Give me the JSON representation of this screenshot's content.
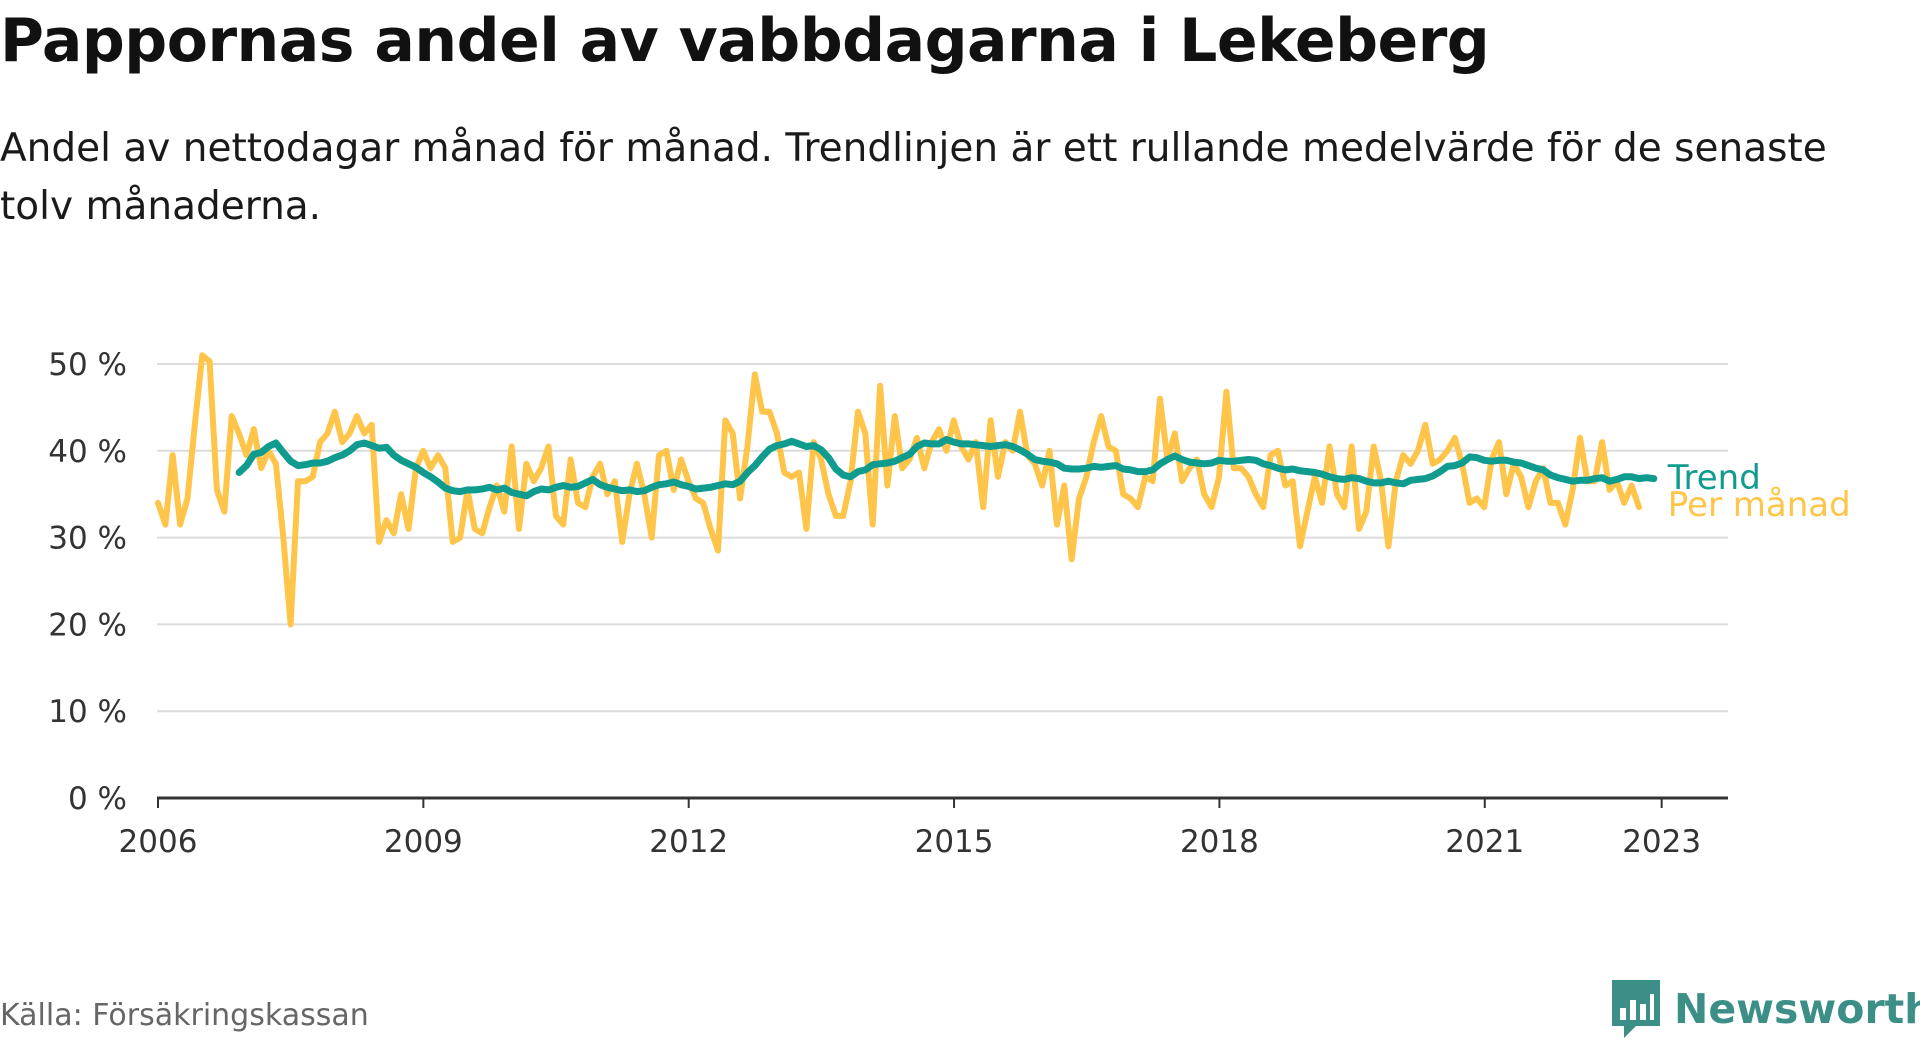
{
  "title": "Pappornas andel av vabbdagarna i Lekeberg",
  "subtitle": "Andel av nettodagar månad för månad. Trendlinjen är ett rullande medelvärde för de senaste tolv månaderna.",
  "source": "Källa: Försäkringskassan",
  "brand": "Newsworthy",
  "colors": {
    "monthly": "#ffc54a",
    "trend": "#0f9b8e",
    "brand": "#3b8f86",
    "grid": "#dcdcdc",
    "axis": "#333333"
  },
  "chart_data": {
    "type": "line",
    "ylim": [
      0,
      50
    ],
    "y_ticks": [
      0,
      10,
      20,
      30,
      40,
      50
    ],
    "y_tick_labels": [
      "0 %",
      "10 %",
      "20 %",
      "30 %",
      "40 %",
      "50 %"
    ],
    "xlim": [
      2006,
      2023.75
    ],
    "x_ticks": [
      2006,
      2009,
      2012,
      2015,
      2018,
      2021,
      2023
    ],
    "x_tick_labels": [
      "2006",
      "2009",
      "2012",
      "2015",
      "2018",
      "2021",
      "2023"
    ],
    "grid": "horizontal",
    "series": [
      {
        "name": "Per månad",
        "start": 2006.0,
        "step": 0.0833,
        "values": [
          34,
          31.5,
          39.5,
          31.5,
          34.5,
          43,
          51,
          50.3,
          35.5,
          33,
          44,
          42,
          39.5,
          42.5,
          38,
          40,
          38.5,
          30,
          20,
          36.5,
          36.5,
          37,
          41,
          42,
          44.5,
          41,
          42,
          44,
          42,
          43,
          29.5,
          32,
          30.5,
          35,
          31,
          38,
          40,
          38,
          39.5,
          38,
          29.5,
          30,
          35.5,
          31,
          30.5,
          33.5,
          36,
          33,
          40.5,
          31,
          38.5,
          36.5,
          38,
          40.5,
          32.5,
          31.5,
          39,
          34,
          33.5,
          37,
          38.5,
          35,
          36.5,
          29.5,
          35,
          38.5,
          35,
          30,
          39.5,
          40,
          35.5,
          39,
          36.5,
          34.5,
          34,
          31,
          28.5,
          43.5,
          42,
          34.5,
          40.5,
          48.8,
          44.5,
          44.5,
          42,
          37.5,
          37,
          37.5,
          31,
          41,
          39,
          35,
          32.5,
          32.5,
          36.5,
          44.5,
          42,
          31.5,
          47.5,
          36,
          44,
          38,
          39,
          41.5,
          38,
          41,
          42.5,
          40,
          43.5,
          40.5,
          39,
          41,
          33.5,
          43.5,
          37,
          41,
          40,
          44.5,
          39.5,
          38.5,
          36,
          40,
          31.5,
          36,
          27.5,
          34.5,
          37,
          41,
          44,
          40.5,
          40,
          35,
          34.5,
          33.5,
          37,
          36.5,
          46,
          39,
          42,
          36.5,
          38,
          39,
          35,
          33.5,
          37,
          46.8,
          38,
          38,
          37,
          35,
          33.5,
          39.5,
          40,
          36,
          36.5,
          29,
          33,
          37,
          34,
          40.5,
          35,
          33.5,
          40.5,
          31,
          33,
          40.5,
          36.5,
          29,
          36.5,
          39.5,
          38.5,
          40,
          43,
          38.5,
          39,
          40,
          41.5,
          38.5,
          34,
          34.5,
          33.5,
          39,
          41,
          35,
          38.5,
          37,
          33.5,
          36.5,
          38,
          34,
          34,
          31.5,
          35.5,
          41.5,
          36.5,
          36.5,
          41,
          35.5,
          36.5,
          34,
          36,
          33.5
        ]
      },
      {
        "name": "Trend",
        "start": 2006.917,
        "step": 0.0833,
        "values": [
          37.5,
          38.3,
          39.6,
          39.8,
          40.5,
          40.9,
          39.8,
          38.8,
          38.3,
          38.4,
          38.6,
          38.6,
          38.8,
          39.2,
          39.5,
          40,
          40.7,
          40.9,
          40.6,
          40.3,
          40.4,
          39.5,
          38.9,
          38.5,
          38.1,
          37.5,
          37,
          36.4,
          35.7,
          35.4,
          35.3,
          35.5,
          35.5,
          35.6,
          35.8,
          35.5,
          35.7,
          35.2,
          35,
          34.8,
          35.3,
          35.6,
          35.5,
          35.8,
          36,
          35.8,
          35.9,
          36.3,
          36.7,
          36.1,
          35.8,
          35.6,
          35.4,
          35.5,
          35.3,
          35.4,
          35.8,
          36.1,
          36.2,
          36.4,
          36.1,
          35.9,
          35.6,
          35.7,
          35.8,
          36,
          36.2,
          36.1,
          36.5,
          37.5,
          38.3,
          39.3,
          40.2,
          40.6,
          40.8,
          41.1,
          40.8,
          40.5,
          40.6,
          40.1,
          39.2,
          37.9,
          37.2,
          37,
          37.6,
          37.8,
          38.4,
          38.5,
          38.6,
          38.8,
          39.2,
          39.6,
          40.5,
          40.9,
          40.8,
          40.8,
          41.3,
          41,
          40.8,
          40.8,
          40.7,
          40.6,
          40.5,
          40.6,
          40.7,
          40.5,
          40.1,
          39.6,
          39,
          38.8,
          38.7,
          38.5,
          38,
          37.9,
          37.9,
          38,
          38.2,
          38.1,
          38.2,
          38.3,
          37.9,
          37.8,
          37.6,
          37.6,
          37.8,
          38.5,
          39,
          39.4,
          39,
          38.7,
          38.6,
          38.5,
          38.6,
          38.9,
          38.8,
          38.8,
          38.9,
          39,
          38.9,
          38.5,
          38.3,
          38,
          37.8,
          37.9,
          37.7,
          37.6,
          37.5,
          37.3,
          37,
          36.8,
          36.7,
          36.9,
          36.8,
          36.5,
          36.3,
          36.3,
          36.5,
          36.3,
          36.2,
          36.6,
          36.7,
          36.8,
          37.1,
          37.6,
          38.2,
          38.3,
          38.6,
          39.3,
          39.2,
          38.9,
          38.8,
          38.9,
          38.9,
          38.7,
          38.6,
          38.3,
          38,
          37.8,
          37.2,
          36.9,
          36.7,
          36.5,
          36.6,
          36.6,
          36.8,
          36.9,
          36.5,
          36.7,
          37,
          37,
          36.8,
          36.9,
          36.8
        ]
      }
    ]
  }
}
